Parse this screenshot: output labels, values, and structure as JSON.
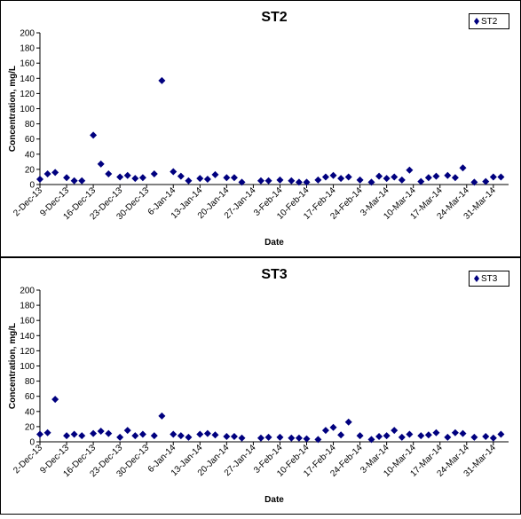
{
  "colors": {
    "marker": "#00007f",
    "axis": "#000000",
    "border": "#000000",
    "background": "#ffffff"
  },
  "chart_data": [
    {
      "type": "scatter",
      "title": "ST2",
      "xlabel": "Date",
      "ylabel": "Concentration, mg/L",
      "legend": {
        "label": "ST2",
        "placement": "top-right"
      },
      "ylim": [
        0,
        200
      ],
      "yticks": [
        0,
        20,
        40,
        60,
        80,
        100,
        120,
        140,
        160,
        180,
        200
      ],
      "xlim": [
        "2013-12-02",
        "2014-04-04"
      ],
      "xticks": [
        {
          "date": "2013-12-02",
          "label": "2-Dec-13"
        },
        {
          "date": "2013-12-09",
          "label": "9-Dec-13"
        },
        {
          "date": "2013-12-16",
          "label": "16-Dec-13"
        },
        {
          "date": "2013-12-23",
          "label": "23-Dec-13"
        },
        {
          "date": "2013-12-30",
          "label": "30-Dec-13"
        },
        {
          "date": "2014-01-06",
          "label": "6-Jan-14"
        },
        {
          "date": "2014-01-13",
          "label": "13-Jan-14"
        },
        {
          "date": "2014-01-20",
          "label": "20-Jan-14"
        },
        {
          "date": "2014-01-27",
          "label": "27-Jan-14"
        },
        {
          "date": "2014-02-03",
          "label": "3-Feb-14"
        },
        {
          "date": "2014-02-10",
          "label": "10-Feb-14"
        },
        {
          "date": "2014-02-17",
          "label": "17-Feb-14"
        },
        {
          "date": "2014-02-24",
          "label": "24-Feb-14"
        },
        {
          "date": "2014-03-03",
          "label": "3-Mar-14"
        },
        {
          "date": "2014-03-10",
          "label": "10-Mar-14"
        },
        {
          "date": "2014-03-17",
          "label": "17-Mar-14"
        },
        {
          "date": "2014-03-24",
          "label": "24-Mar-14"
        },
        {
          "date": "2014-03-31",
          "label": "31-Mar-14"
        }
      ],
      "series": [
        {
          "name": "ST2",
          "points": [
            {
              "x": "2013-12-02",
              "y": 7
            },
            {
              "x": "2013-12-04",
              "y": 14
            },
            {
              "x": "2013-12-06",
              "y": 16
            },
            {
              "x": "2013-12-09",
              "y": 9
            },
            {
              "x": "2013-12-11",
              "y": 5
            },
            {
              "x": "2013-12-13",
              "y": 5
            },
            {
              "x": "2013-12-16",
              "y": 65
            },
            {
              "x": "2013-12-18",
              "y": 27
            },
            {
              "x": "2013-12-20",
              "y": 14
            },
            {
              "x": "2013-12-23",
              "y": 10
            },
            {
              "x": "2013-12-25",
              "y": 12
            },
            {
              "x": "2013-12-27",
              "y": 8
            },
            {
              "x": "2013-12-29",
              "y": 9
            },
            {
              "x": "2014-01-01",
              "y": 14
            },
            {
              "x": "2014-01-03",
              "y": 137
            },
            {
              "x": "2014-01-06",
              "y": 17
            },
            {
              "x": "2014-01-08",
              "y": 11
            },
            {
              "x": "2014-01-10",
              "y": 5
            },
            {
              "x": "2014-01-13",
              "y": 8
            },
            {
              "x": "2014-01-15",
              "y": 7
            },
            {
              "x": "2014-01-17",
              "y": 13
            },
            {
              "x": "2014-01-20",
              "y": 9
            },
            {
              "x": "2014-01-22",
              "y": 9
            },
            {
              "x": "2014-01-24",
              "y": 3
            },
            {
              "x": "2014-01-29",
              "y": 5
            },
            {
              "x": "2014-01-31",
              "y": 5
            },
            {
              "x": "2014-02-03",
              "y": 6
            },
            {
              "x": "2014-02-06",
              "y": 5
            },
            {
              "x": "2014-02-08",
              "y": 3
            },
            {
              "x": "2014-02-10",
              "y": 3
            },
            {
              "x": "2014-02-13",
              "y": 6
            },
            {
              "x": "2014-02-15",
              "y": 10
            },
            {
              "x": "2014-02-17",
              "y": 12
            },
            {
              "x": "2014-02-19",
              "y": 8
            },
            {
              "x": "2014-02-21",
              "y": 10
            },
            {
              "x": "2014-02-24",
              "y": 6
            },
            {
              "x": "2014-02-27",
              "y": 3
            },
            {
              "x": "2014-03-01",
              "y": 11
            },
            {
              "x": "2014-03-03",
              "y": 8
            },
            {
              "x": "2014-03-05",
              "y": 10
            },
            {
              "x": "2014-03-07",
              "y": 6
            },
            {
              "x": "2014-03-09",
              "y": 19
            },
            {
              "x": "2014-03-12",
              "y": 4
            },
            {
              "x": "2014-03-14",
              "y": 9
            },
            {
              "x": "2014-03-16",
              "y": 11
            },
            {
              "x": "2014-03-19",
              "y": 12
            },
            {
              "x": "2014-03-21",
              "y": 9
            },
            {
              "x": "2014-03-23",
              "y": 22
            },
            {
              "x": "2014-03-26",
              "y": 3
            },
            {
              "x": "2014-03-29",
              "y": 4
            },
            {
              "x": "2014-03-31",
              "y": 10
            },
            {
              "x": "2014-04-02",
              "y": 10
            }
          ]
        }
      ]
    },
    {
      "type": "scatter",
      "title": "ST3",
      "xlabel": "Date",
      "ylabel": "Concentration, mg/L",
      "legend": {
        "label": "ST3",
        "placement": "top-right"
      },
      "ylim": [
        0,
        200
      ],
      "yticks": [
        0,
        20,
        40,
        60,
        80,
        100,
        120,
        140,
        160,
        180,
        200
      ],
      "xlim": [
        "2013-12-02",
        "2014-04-04"
      ],
      "xticks": [
        {
          "date": "2013-12-02",
          "label": "2-Dec-13"
        },
        {
          "date": "2013-12-09",
          "label": "9-Dec-13"
        },
        {
          "date": "2013-12-16",
          "label": "16-Dec-13"
        },
        {
          "date": "2013-12-23",
          "label": "23-Dec-13"
        },
        {
          "date": "2013-12-30",
          "label": "30-Dec-13"
        },
        {
          "date": "2014-01-06",
          "label": "6-Jan-14"
        },
        {
          "date": "2014-01-13",
          "label": "13-Jan-14"
        },
        {
          "date": "2014-01-20",
          "label": "20-Jan-14"
        },
        {
          "date": "2014-01-27",
          "label": "27-Jan-14"
        },
        {
          "date": "2014-02-03",
          "label": "3-Feb-14"
        },
        {
          "date": "2014-02-10",
          "label": "10-Feb-14"
        },
        {
          "date": "2014-02-17",
          "label": "17-Feb-14"
        },
        {
          "date": "2014-02-24",
          "label": "24-Feb-14"
        },
        {
          "date": "2014-03-03",
          "label": "3-Mar-14"
        },
        {
          "date": "2014-03-10",
          "label": "10-Mar-14"
        },
        {
          "date": "2014-03-17",
          "label": "17-Mar-14"
        },
        {
          "date": "2014-03-24",
          "label": "24-Mar-14"
        },
        {
          "date": "2014-03-31",
          "label": "31-Mar-14"
        }
      ],
      "series": [
        {
          "name": "ST3",
          "points": [
            {
              "x": "2013-12-02",
              "y": 10
            },
            {
              "x": "2013-12-04",
              "y": 12
            },
            {
              "x": "2013-12-06",
              "y": 56
            },
            {
              "x": "2013-12-09",
              "y": 8
            },
            {
              "x": "2013-12-11",
              "y": 10
            },
            {
              "x": "2013-12-13",
              "y": 8
            },
            {
              "x": "2013-12-16",
              "y": 11
            },
            {
              "x": "2013-12-18",
              "y": 14
            },
            {
              "x": "2013-12-20",
              "y": 11
            },
            {
              "x": "2013-12-23",
              "y": 6
            },
            {
              "x": "2013-12-25",
              "y": 15
            },
            {
              "x": "2013-12-27",
              "y": 8
            },
            {
              "x": "2013-12-29",
              "y": 10
            },
            {
              "x": "2014-01-01",
              "y": 8
            },
            {
              "x": "2014-01-03",
              "y": 34
            },
            {
              "x": "2014-01-06",
              "y": 10
            },
            {
              "x": "2014-01-08",
              "y": 8
            },
            {
              "x": "2014-01-10",
              "y": 6
            },
            {
              "x": "2014-01-13",
              "y": 10
            },
            {
              "x": "2014-01-15",
              "y": 11
            },
            {
              "x": "2014-01-17",
              "y": 9
            },
            {
              "x": "2014-01-20",
              "y": 7
            },
            {
              "x": "2014-01-22",
              "y": 7
            },
            {
              "x": "2014-01-24",
              "y": 5
            },
            {
              "x": "2014-01-29",
              "y": 5
            },
            {
              "x": "2014-01-31",
              "y": 6
            },
            {
              "x": "2014-02-03",
              "y": 6
            },
            {
              "x": "2014-02-06",
              "y": 5
            },
            {
              "x": "2014-02-08",
              "y": 5
            },
            {
              "x": "2014-02-10",
              "y": 4
            },
            {
              "x": "2014-02-13",
              "y": 3
            },
            {
              "x": "2014-02-15",
              "y": 15
            },
            {
              "x": "2014-02-17",
              "y": 19
            },
            {
              "x": "2014-02-19",
              "y": 9
            },
            {
              "x": "2014-02-21",
              "y": 26
            },
            {
              "x": "2014-02-24",
              "y": 8
            },
            {
              "x": "2014-02-27",
              "y": 3
            },
            {
              "x": "2014-03-01",
              "y": 7
            },
            {
              "x": "2014-03-03",
              "y": 8
            },
            {
              "x": "2014-03-05",
              "y": 15
            },
            {
              "x": "2014-03-07",
              "y": 6
            },
            {
              "x": "2014-03-09",
              "y": 10
            },
            {
              "x": "2014-03-12",
              "y": 8
            },
            {
              "x": "2014-03-14",
              "y": 9
            },
            {
              "x": "2014-03-16",
              "y": 12
            },
            {
              "x": "2014-03-19",
              "y": 6
            },
            {
              "x": "2014-03-21",
              "y": 12
            },
            {
              "x": "2014-03-23",
              "y": 11
            },
            {
              "x": "2014-03-26",
              "y": 6
            },
            {
              "x": "2014-03-29",
              "y": 7
            },
            {
              "x": "2014-03-31",
              "y": 5
            },
            {
              "x": "2014-04-02",
              "y": 10
            }
          ]
        }
      ]
    }
  ]
}
